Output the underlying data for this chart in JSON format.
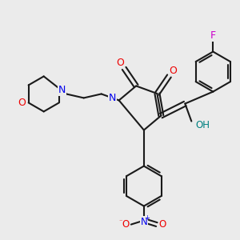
{
  "bg_color": "#ebebeb",
  "bond_color": "#1a1a1a",
  "nitrogen_color": "#0000ee",
  "oxygen_color": "#ee0000",
  "fluorine_color": "#cc00cc",
  "oh_color": "#008080",
  "lw": 1.5,
  "fig_size": [
    3.0,
    3.0
  ],
  "dpi": 100,
  "xlim": [
    0,
    300
  ],
  "ylim": [
    0,
    300
  ]
}
